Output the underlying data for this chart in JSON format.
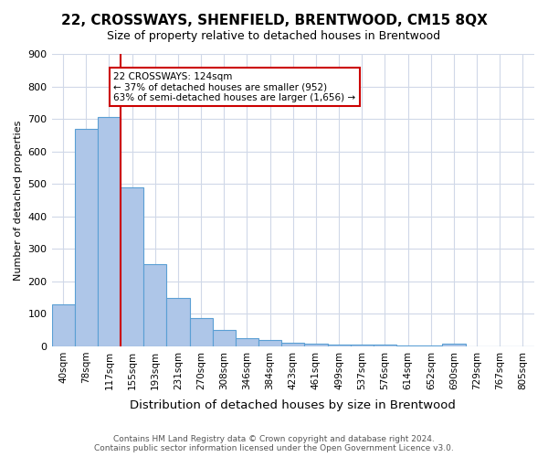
{
  "title": "22, CROSSWAYS, SHENFIELD, BRENTWOOD, CM15 8QX",
  "subtitle": "Size of property relative to detached houses in Brentwood",
  "xlabel": "Distribution of detached houses by size in Brentwood",
  "ylabel": "Number of detached properties",
  "categories": [
    "40sqm",
    "78sqm",
    "117sqm",
    "155sqm",
    "193sqm",
    "231sqm",
    "270sqm",
    "308sqm",
    "346sqm",
    "384sqm",
    "423sqm",
    "461sqm",
    "499sqm",
    "537sqm",
    "576sqm",
    "614sqm",
    "652sqm",
    "690sqm",
    "729sqm",
    "767sqm",
    "805sqm"
  ],
  "values": [
    130,
    670,
    705,
    490,
    253,
    150,
    88,
    50,
    25,
    20,
    12,
    9,
    6,
    5,
    4,
    3,
    3,
    8,
    0,
    0,
    0
  ],
  "bar_color": "#aec6e8",
  "bar_edge_color": "#5a9fd4",
  "property_line_x": 2,
  "property_line_color": "#cc0000",
  "annotation_text": "22 CROSSWAYS: 124sqm\n← 37% of detached houses are smaller (952)\n63% of semi-detached houses are larger (1,656) →",
  "annotation_box_color": "#ffffff",
  "annotation_box_edge_color": "#cc0000",
  "footer_text": "Contains HM Land Registry data © Crown copyright and database right 2024.\nContains public sector information licensed under the Open Government Licence v3.0.",
  "ylim": [
    0,
    900
  ],
  "yticks": [
    0,
    100,
    200,
    300,
    400,
    500,
    600,
    700,
    800,
    900
  ],
  "background_color": "#ffffff",
  "grid_color": "#d0d8e8"
}
